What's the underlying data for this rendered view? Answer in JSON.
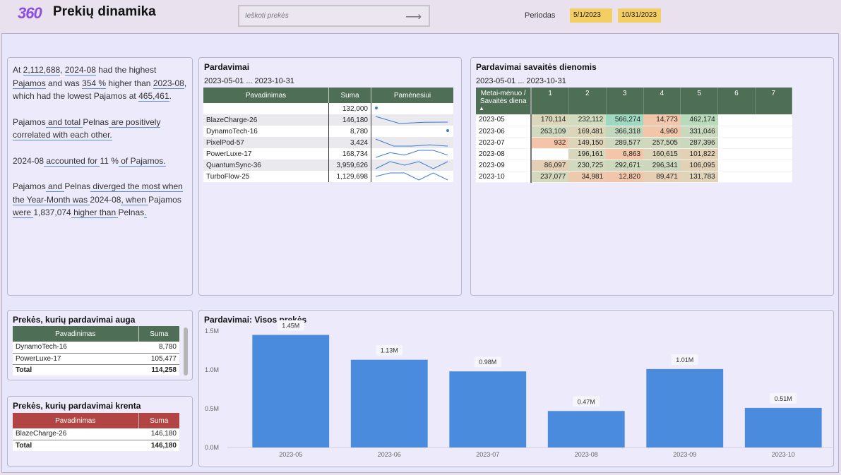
{
  "header": {
    "logo": "360",
    "title": "Prekių dinamika",
    "search_placeholder": "Ieškoti prekės",
    "period_label": "Periodas",
    "date_from": "5/1/2023",
    "date_to": "10/31/2023"
  },
  "narrative": {
    "p1": [
      "At ",
      "2,112,688",
      ", ",
      "2024-08",
      " had the highest ",
      "Pajamos",
      " and was ",
      "354 %",
      " higher than ",
      "2023-08",
      ", which had the lowest Pajamos at ",
      "465,461",
      "."
    ],
    "p2": [
      "Pajamos",
      " and total ",
      "Pelnas",
      " are positively correlated with each other."
    ],
    "p3": [
      "2024-08",
      " accounted for ",
      "11 %",
      " of Pajamos."
    ],
    "p4": [
      "Pajamos",
      " and ",
      "Pelnas",
      " diverged the most when the Year-Month was ",
      "2024-08",
      ", when ",
      "Pajamos",
      " were ",
      "1,837,074",
      " higher than ",
      "Pelnas",
      "."
    ]
  },
  "sales": {
    "title": "Pardavimai",
    "range": "2023-05-01 ... 2023-10-31",
    "col_name": "Pavadinimas",
    "col_sum": "Suma",
    "col_monthly": "Pamėnesiui",
    "rows": [
      {
        "name": "",
        "sum": "132,000",
        "spark": [
          1
        ]
      },
      {
        "name": "BlazeCharge-26",
        "sum": "146,180",
        "spark": [
          5,
          2,
          2.5,
          2.6
        ]
      },
      {
        "name": "DynamoTech-16",
        "sum": "8,780",
        "spark": [
          1
        ]
      },
      {
        "name": "PixelPod-57",
        "sum": "3,424",
        "spark": [
          4,
          1,
          1,
          1.5,
          1
        ]
      },
      {
        "name": "PowerLuxe-17",
        "sum": "168,734",
        "spark": [
          1,
          3,
          2,
          4,
          4,
          2
        ]
      },
      {
        "name": "QuantumSync-36",
        "sum": "3,959,626",
        "spark": [
          2,
          4,
          3,
          4,
          2,
          4
        ]
      },
      {
        "name": "TurboFlow-25",
        "sum": "1,129,698",
        "spark": [
          2,
          3,
          3,
          1,
          3,
          1
        ]
      }
    ]
  },
  "weekday": {
    "title": "Pardavimai savaitės dienomis",
    "range": "2023-05-01 ... 2023-10-31",
    "corner": "Metai-mėnuo / Savaitės diena",
    "sort_icon": "▲",
    "days": [
      "1",
      "2",
      "3",
      "4",
      "5",
      "6",
      "7"
    ],
    "rows": [
      {
        "month": "2023-05",
        "vals": [
          "170,114",
          "232,112",
          "566,274",
          "14,773",
          "462,174",
          "",
          ""
        ],
        "colors": [
          "#dad7bb",
          "#d1dbbd",
          "#9fd8c0",
          "#f0c7ab",
          "#b8dbbc",
          "",
          ""
        ]
      },
      {
        "month": "2023-06",
        "vals": [
          "263,109",
          "169,481",
          "366,318",
          "4,960",
          "331,046",
          "",
          ""
        ],
        "colors": [
          "#cfdabf",
          "#dbd6ba",
          "#c1d8bd",
          "#f3c5a9",
          "#c8d9be",
          "",
          ""
        ]
      },
      {
        "month": "2023-07",
        "vals": [
          "932",
          "149,150",
          "289,577",
          "257,505",
          "287,396",
          "",
          ""
        ],
        "colors": [
          "#f4c4a8",
          "#ddd4b9",
          "#cdd9be",
          "#d0d9be",
          "#ccd8bd",
          "",
          ""
        ]
      },
      {
        "month": "2023-08",
        "vals": [
          "",
          "196,161",
          "6,863",
          "160,615",
          "101,822",
          "",
          ""
        ],
        "colors": [
          "#ffffff",
          "#d8d6bb",
          "#f3c5a9",
          "#dcd5ba",
          "#e3d1b6",
          "",
          ""
        ]
      },
      {
        "month": "2023-09",
        "vals": [
          "86,097",
          "230,725",
          "292,671",
          "296,341",
          "106,095",
          "",
          ""
        ],
        "colors": [
          "#e5cfb4",
          "#d2dabe",
          "#cdd9bd",
          "#ccd8bd",
          "#e3d1b6",
          "",
          ""
        ]
      },
      {
        "month": "2023-10",
        "vals": [
          "237,077",
          "34,981",
          "12,820",
          "89,471",
          "131,783",
          "",
          ""
        ],
        "colors": [
          "#d4d9bd",
          "#edc9ae",
          "#f1c6aa",
          "#e6cfb3",
          "#e0d3b8",
          "",
          ""
        ]
      }
    ]
  },
  "rising": {
    "title": "Prekės, kurių pardavimai auga",
    "col_name": "Pavadinimas",
    "col_sum": "Suma",
    "rows": [
      {
        "name": "DynamoTech-16",
        "sum": "8,780"
      },
      {
        "name": "PowerLuxe-17",
        "sum": "105,477"
      }
    ],
    "total_label": "Total",
    "total": "114,258"
  },
  "falling": {
    "title": "Prekės, kurių pardavimai krenta",
    "col_name": "Pavadinimas",
    "col_sum": "Suma",
    "rows": [
      {
        "name": "BlazeCharge-26",
        "sum": "146,180"
      }
    ],
    "total_label": "Total",
    "total": "146,180"
  },
  "chart_data": {
    "type": "bar",
    "title": "Pardavimai:  Visos prekės",
    "categories": [
      "2023-05",
      "2023-06",
      "2023-07",
      "2023-08",
      "2023-09",
      "2023-10"
    ],
    "values": [
      1.45,
      1.13,
      0.98,
      0.47,
      1.01,
      0.51
    ],
    "data_labels": [
      "1.45M",
      "1.13M",
      "0.98M",
      "0.47M",
      "1.01M",
      "0.51M"
    ],
    "y_ticks": [
      "0.0M",
      "0.5M",
      "1.0M",
      "1.5M"
    ],
    "y_tick_values": [
      0,
      0.5,
      1.0,
      1.5
    ],
    "ylim": [
      0,
      1.6
    ],
    "grid": false,
    "bar_color": "#4a8bdd"
  }
}
